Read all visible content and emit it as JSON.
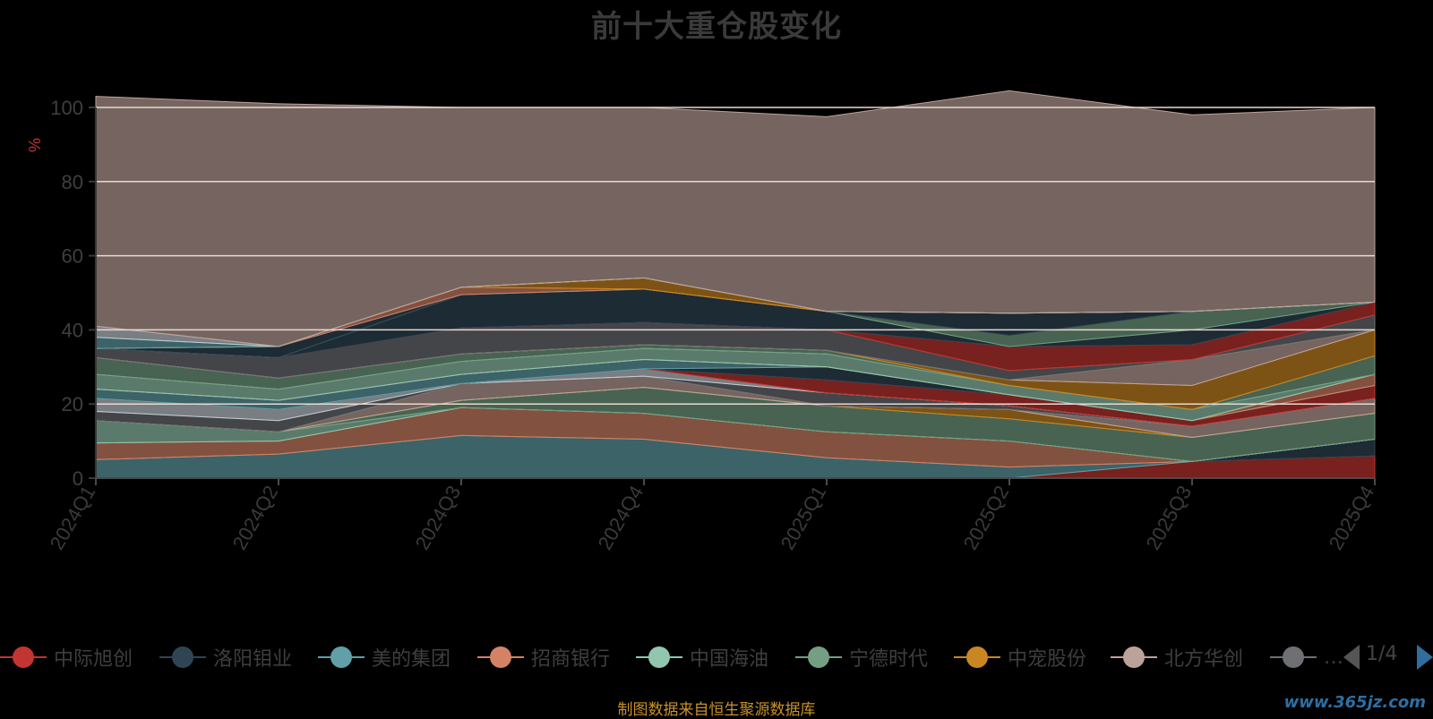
{
  "chart_data": {
    "type": "area",
    "title": "前十大重仓股变化",
    "ylabel": "%",
    "xlabel": "",
    "ylim": [
      0,
      100
    ],
    "yticks": [
      0,
      20,
      40,
      60,
      80,
      100
    ],
    "categories": [
      "2024Q1",
      "2024Q2",
      "2024Q3",
      "2024Q4",
      "2025Q1",
      "2025Q2",
      "2025Q3",
      "2025Q4"
    ],
    "stacked": true,
    "series": [
      {
        "name": "中际旭创",
        "color": "#c23531",
        "values": [
          0,
          0,
          0,
          0,
          0,
          0,
          4.5,
          6
        ]
      },
      {
        "name": "洛阳钼业",
        "color": "#2f4554",
        "values": [
          0,
          0,
          0,
          0,
          0,
          0,
          0,
          4.5
        ]
      },
      {
        "name": "美的集团",
        "color": "#61a0a8",
        "values": [
          5,
          6.5,
          11.5,
          10.5,
          5.5,
          3,
          0,
          0
        ]
      },
      {
        "name": "招商银行",
        "color": "#d48265",
        "values": [
          4.5,
          3.5,
          7.5,
          7,
          7,
          7,
          0,
          0
        ]
      },
      {
        "name": "中国海油",
        "color": "#91c7ae",
        "values": [
          6,
          2.5,
          0,
          0,
          0,
          0,
          0,
          0
        ]
      },
      {
        "name": "宁德时代",
        "color": "#749f83",
        "values": [
          0,
          0,
          2,
          7,
          7,
          6,
          6.5,
          7
        ]
      },
      {
        "name": "中宠股份",
        "color": "#ca8622",
        "values": [
          0,
          0,
          0,
          0,
          0,
          2.5,
          0,
          0
        ]
      },
      {
        "name": "北方华创",
        "color": "#bda29a",
        "values": [
          0,
          0,
          4.5,
          3,
          0,
          0,
          3,
          4
        ]
      },
      {
        "name": "",
        "color": "#6e7074",
        "values": [
          2.5,
          3,
          0,
          0,
          3.5,
          1,
          0,
          0
        ]
      },
      {
        "name": "",
        "color": "#c4ccd3",
        "values": [
          3.5,
          3,
          0,
          2,
          0,
          0,
          0,
          0
        ]
      },
      {
        "name": "",
        "color": "#c23531",
        "values": [
          0,
          0,
          0,
          0,
          3.5,
          3,
          1.5,
          3.5
        ]
      },
      {
        "name": "",
        "color": "#2f4554",
        "values": [
          0,
          0,
          0,
          0,
          3.5,
          0,
          0,
          0
        ]
      },
      {
        "name": "",
        "color": "#61a0a8",
        "values": [
          2.5,
          2.5,
          2.5,
          2.5,
          0,
          0,
          0,
          0
        ]
      },
      {
        "name": "",
        "color": "#d48265",
        "values": [
          0,
          0,
          0,
          0,
          0,
          0,
          0,
          3
        ]
      },
      {
        "name": "",
        "color": "#91c7ae",
        "values": [
          4,
          3,
          3.5,
          3,
          3.5,
          2.5,
          3,
          0
        ]
      },
      {
        "name": "",
        "color": "#749f83",
        "values": [
          4.5,
          3,
          2,
          1,
          1,
          0,
          0,
          5
        ]
      },
      {
        "name": "",
        "color": "#ca8622",
        "values": [
          0,
          0,
          0,
          0,
          0,
          1.5,
          6.5,
          7
        ]
      },
      {
        "name": "",
        "color": "#bda29a",
        "values": [
          0,
          0,
          0,
          0,
          0,
          0,
          7,
          0
        ]
      },
      {
        "name": "",
        "color": "#6e7074",
        "values": [
          2.5,
          5.5,
          7,
          6,
          5.5,
          2.5,
          0,
          4
        ]
      },
      {
        "name": "",
        "color": "#c23531",
        "values": [
          0,
          0,
          0,
          0,
          0,
          6.5,
          4,
          3.5
        ]
      },
      {
        "name": "",
        "color": "#2f4554",
        "values": [
          0,
          0,
          9,
          9,
          5,
          0,
          4,
          0
        ]
      },
      {
        "name": "",
        "color": "#749f83",
        "values": [
          0,
          0,
          0,
          0,
          0,
          3,
          5,
          0
        ]
      },
      {
        "name": "",
        "color": "#2f4554",
        "values": [
          0,
          3,
          0,
          0,
          0,
          6,
          0,
          0
        ]
      },
      {
        "name": "",
        "color": "#d48265",
        "values": [
          0,
          0,
          2,
          0,
          0,
          0,
          0,
          0
        ]
      },
      {
        "name": "",
        "color": "#ca8622",
        "values": [
          0,
          0,
          0,
          3,
          0,
          0,
          0,
          0
        ]
      },
      {
        "name": "",
        "color": "#61a0a8",
        "values": [
          3,
          0,
          0,
          0,
          0,
          0,
          0,
          0
        ]
      },
      {
        "name": "",
        "color": "#c4ccd3",
        "values": [
          3,
          0,
          0,
          0,
          0,
          0,
          0,
          0
        ]
      },
      {
        "name": "",
        "color": "#bda29a",
        "values": [
          62,
          65.5,
          48.5,
          46,
          52.5,
          60,
          53,
          52.5
        ]
      }
    ],
    "grid": true,
    "legend_position": "bottom",
    "legend_page": "1/4"
  },
  "legend": {
    "items": [
      {
        "name": "中际旭创",
        "color": "#c23531"
      },
      {
        "name": "洛阳钼业",
        "color": "#2f4554"
      },
      {
        "name": "美的集团",
        "color": "#61a0a8"
      },
      {
        "name": "招商银行",
        "color": "#d48265"
      },
      {
        "name": "中国海油",
        "color": "#91c7ae"
      },
      {
        "name": "宁德时代",
        "color": "#749f83"
      },
      {
        "name": "中宠股份",
        "color": "#ca8622"
      },
      {
        "name": "北方华创",
        "color": "#bda29a"
      },
      {
        "name": "…",
        "color": "#6e7074"
      }
    ]
  },
  "pager": {
    "text": "1/4",
    "prev_icon": "triangle-left-icon",
    "next_icon": "triangle-right-icon"
  },
  "footer": {
    "source": "制图数据来自恒生聚源数据库",
    "watermark": "www.365jz.com"
  }
}
